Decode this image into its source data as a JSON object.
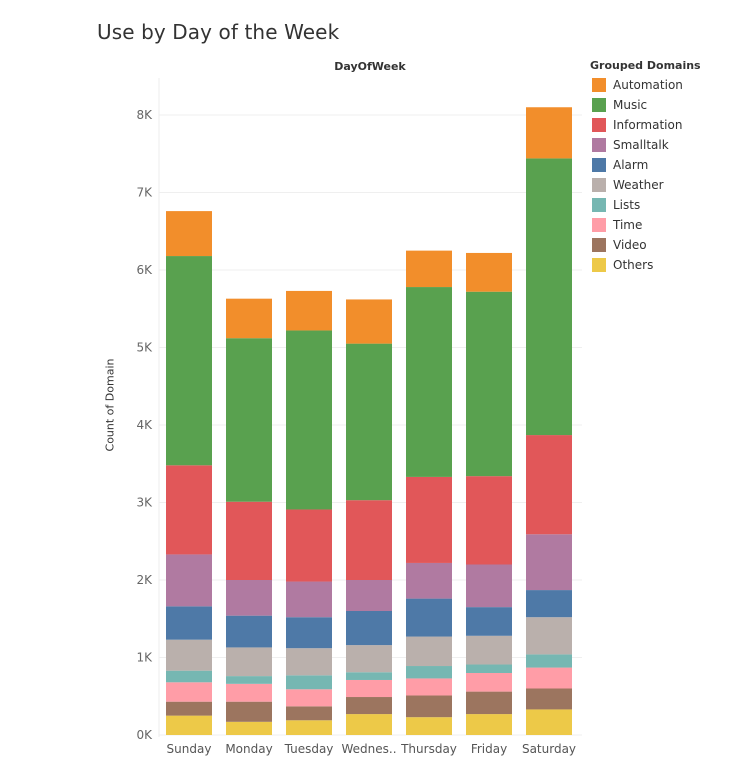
{
  "chart_data": {
    "type": "bar",
    "stacked": true,
    "title": "Use by Day of the Week",
    "column_header": "DayOfWeek",
    "xlabel": "",
    "ylabel": "Count of Domain",
    "ylim": [
      0,
      8300
    ],
    "yticks": [
      0,
      1000,
      2000,
      3000,
      4000,
      5000,
      6000,
      7000,
      8000
    ],
    "ytick_labels": [
      "0K",
      "1K",
      "2K",
      "3K",
      "4K",
      "5K",
      "6K",
      "7K",
      "8K"
    ],
    "grid": true,
    "legend_title": "Grouped Domains",
    "legend_position": "right",
    "categories": [
      "Sunday",
      "Monday",
      "Tuesday",
      "Wednesday",
      "Thursday",
      "Friday",
      "Saturday"
    ],
    "category_labels": [
      "Sunday",
      "Monday",
      "Tuesday",
      "Wednes..",
      "Thursday",
      "Friday",
      "Saturday"
    ],
    "series": [
      {
        "name": "Automation",
        "color": "#F28E2B",
        "values": [
          580,
          510,
          510,
          570,
          470,
          500,
          660
        ]
      },
      {
        "name": "Music",
        "color": "#59A14F",
        "values": [
          2700,
          2110,
          2310,
          2020,
          2450,
          2380,
          3570
        ]
      },
      {
        "name": "Information",
        "color": "#E15759",
        "values": [
          1150,
          1010,
          930,
          1030,
          1110,
          1140,
          1280
        ]
      },
      {
        "name": "Smalltalk",
        "color": "#B07AA1",
        "values": [
          670,
          460,
          460,
          400,
          460,
          550,
          720
        ]
      },
      {
        "name": "Alarm",
        "color": "#4E79A7",
        "values": [
          430,
          410,
          400,
          440,
          490,
          370,
          350
        ]
      },
      {
        "name": "Weather",
        "color": "#BAB0AC",
        "values": [
          400,
          370,
          350,
          350,
          380,
          370,
          480
        ]
      },
      {
        "name": "Lists",
        "color": "#76B7B2",
        "values": [
          150,
          100,
          180,
          100,
          160,
          110,
          170
        ]
      },
      {
        "name": "Time",
        "color": "#FF9DA7",
        "values": [
          250,
          230,
          220,
          220,
          220,
          240,
          270
        ]
      },
      {
        "name": "Video",
        "color": "#9C755F",
        "values": [
          180,
          260,
          180,
          220,
          280,
          290,
          270
        ]
      },
      {
        "name": "Others",
        "color": "#EDC948",
        "values": [
          250,
          170,
          190,
          270,
          230,
          270,
          330
        ]
      }
    ]
  }
}
